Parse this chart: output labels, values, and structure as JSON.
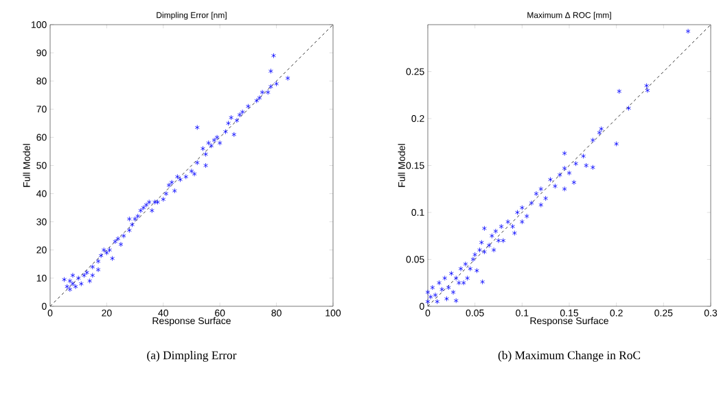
{
  "chart_data": [
    {
      "type": "scatter",
      "title": "Dimpling Error [nm]",
      "xlabel": "Response Surface",
      "ylabel": "Full Model",
      "xlim": [
        0,
        100
      ],
      "ylim": [
        0,
        100
      ],
      "xticks": [
        0,
        20,
        40,
        60,
        80,
        100
      ],
      "yticks": [
        0,
        10,
        20,
        30,
        40,
        50,
        60,
        70,
        80,
        90,
        100
      ],
      "annotations": [
        "(a) Dimpling Error"
      ],
      "series": [
        {
          "color": "#0000ff",
          "marker": "cross",
          "x": [
            5,
            6,
            7,
            7,
            8,
            8,
            9,
            10,
            11,
            12,
            13,
            14,
            15,
            15,
            17,
            17,
            18,
            19,
            20,
            21,
            22,
            23,
            24,
            25,
            26,
            28,
            28,
            29,
            30,
            31,
            32,
            33,
            34,
            35,
            36,
            37,
            38,
            40,
            41,
            42,
            43,
            44,
            45,
            46,
            48,
            50,
            51,
            52,
            52,
            54,
            55,
            55,
            56,
            57,
            58,
            59,
            60,
            62,
            63,
            64,
            65,
            66,
            67,
            68,
            70,
            73,
            74,
            75,
            77,
            78,
            78,
            79,
            80,
            84
          ],
          "values": [
            9.5,
            7,
            6,
            9,
            8,
            11,
            7,
            10,
            8,
            11,
            12,
            9,
            14,
            11,
            13,
            16,
            18,
            20,
            19,
            20,
            17,
            23,
            24,
            22,
            25,
            27,
            31,
            29,
            31,
            32,
            34,
            35,
            36,
            37,
            34,
            37,
            37,
            38,
            40,
            43,
            44,
            41,
            46,
            45,
            46,
            48,
            47,
            51,
            63.5,
            56,
            54,
            50,
            58,
            57,
            59,
            60,
            58,
            62,
            65,
            67,
            61,
            66,
            68,
            69,
            71,
            73,
            74,
            76,
            76,
            78,
            83.5,
            89,
            79,
            81
          ]
        },
        {
          "type": "line",
          "color": "#000000",
          "marker": "none",
          "line_style": "dashed",
          "x": [
            0,
            100
          ],
          "values": [
            0,
            100
          ]
        }
      ]
    },
    {
      "type": "scatter",
      "title": "Maximum Δ ROC [mm]",
      "xlabel": "Response Surface",
      "ylabel": "Full Model",
      "xlim": [
        0,
        0.3
      ],
      "ylim": [
        0,
        0.3
      ],
      "xticks": [
        0,
        0.05,
        0.1,
        0.15,
        0.2,
        0.25,
        0.3
      ],
      "yticks": [
        0,
        0.05,
        0.1,
        0.15,
        0.2,
        0.25
      ],
      "annotations": [
        "(b) Maximum Change in RoC"
      ],
      "series": [
        {
          "color": "#0000ff",
          "marker": "cross",
          "x": [
            0,
            0,
            0.003,
            0.005,
            0.008,
            0.01,
            0.012,
            0.015,
            0.018,
            0.02,
            0.022,
            0.025,
            0.027,
            0.03,
            0.03,
            0.033,
            0.035,
            0.038,
            0.04,
            0.042,
            0.045,
            0.048,
            0.05,
            0.052,
            0.055,
            0.057,
            0.058,
            0.06,
            0.06,
            0.065,
            0.068,
            0.07,
            0.072,
            0.075,
            0.078,
            0.08,
            0.085,
            0.09,
            0.092,
            0.095,
            0.1,
            0.1,
            0.105,
            0.11,
            0.115,
            0.12,
            0.12,
            0.125,
            0.13,
            0.135,
            0.14,
            0.145,
            0.145,
            0.145,
            0.15,
            0.155,
            0.157,
            0.165,
            0.168,
            0.175,
            0.175,
            0.182,
            0.184,
            0.2,
            0.203,
            0.213,
            0.232,
            0.233,
            0.276
          ],
          "values": [
            0.005,
            0.015,
            0.01,
            0.02,
            0.012,
            0.005,
            0.025,
            0.018,
            0.03,
            0.008,
            0.02,
            0.035,
            0.015,
            0.03,
            0.006,
            0.025,
            0.04,
            0.025,
            0.045,
            0.03,
            0.04,
            0.05,
            0.055,
            0.038,
            0.06,
            0.068,
            0.026,
            0.058,
            0.083,
            0.065,
            0.075,
            0.06,
            0.08,
            0.07,
            0.085,
            0.07,
            0.09,
            0.085,
            0.078,
            0.1,
            0.105,
            0.09,
            0.096,
            0.11,
            0.12,
            0.125,
            0.108,
            0.115,
            0.135,
            0.128,
            0.14,
            0.147,
            0.125,
            0.163,
            0.142,
            0.132,
            0.152,
            0.16,
            0.15,
            0.148,
            0.177,
            0.185,
            0.189,
            0.173,
            0.229,
            0.211,
            0.235,
            0.23,
            0.293
          ]
        },
        {
          "type": "line",
          "color": "#000000",
          "marker": "none",
          "line_style": "dashed",
          "x": [
            0,
            0.3
          ],
          "values": [
            0,
            0.3
          ]
        }
      ]
    }
  ]
}
